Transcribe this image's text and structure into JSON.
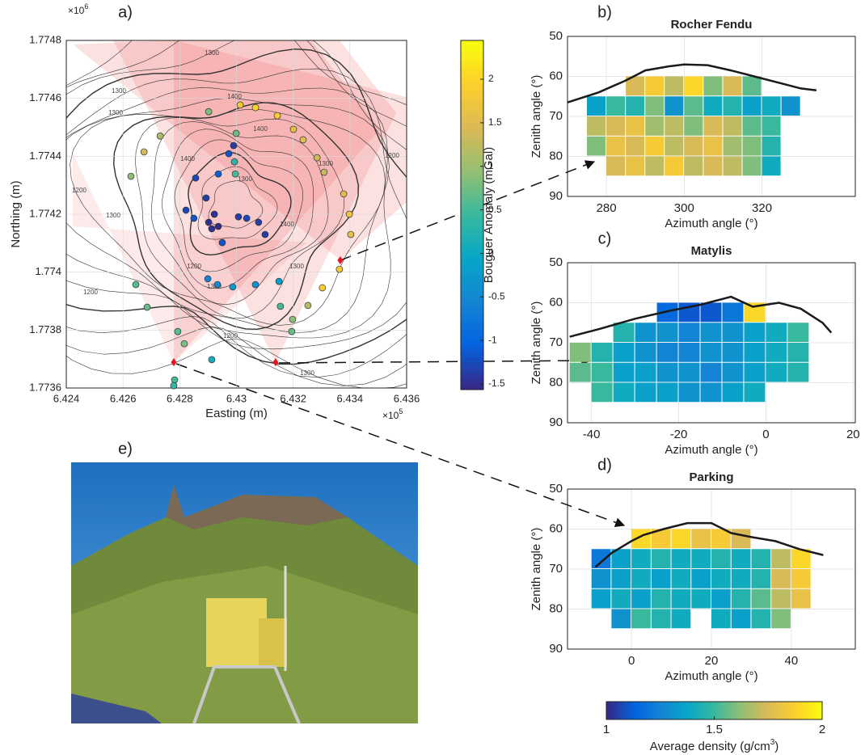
{
  "chart_data": [
    {
      "type": "scatter",
      "label": "a)",
      "xlabel": "Easting (m)",
      "ylabel": "Northing (m)",
      "x_exponent": {
        "base": "×10",
        "exp": "5"
      },
      "y_exponent": {
        "base": "×10",
        "exp": "6"
      },
      "xlim": [
        6.424,
        6.436
      ],
      "ylim": [
        1.7736,
        1.7748
      ],
      "xticks": [
        6.424,
        6.426,
        6.428,
        6.43,
        6.432,
        6.434,
        6.436
      ],
      "yticks": [
        1.7736,
        1.7738,
        1.774,
        1.7742,
        1.7744,
        1.7746,
        1.7748
      ],
      "grid": true,
      "contour_labels": [
        "1300",
        "1300",
        "1300",
        "1400",
        "1200",
        "1400",
        "1300",
        "1200",
        "1300",
        "1400",
        "1400",
        "1300",
        "1300",
        "1200",
        "1300",
        "1200",
        "1200",
        "1300"
      ],
      "stations": {
        "x": [
          6.43013,
          6.43067,
          6.43144,
          6.43201,
          6.43235,
          6.43284,
          6.43309,
          6.43378,
          6.43398,
          6.43403,
          6.43363,
          6.43303,
          6.43252,
          6.43198,
          6.43195,
          6.43155,
          6.4315,
          6.43067,
          6.42987,
          6.42933,
          6.42899,
          6.42793,
          6.42816,
          6.42913,
          6.42782,
          6.42779,
          6.42645,
          6.42685,
          6.42628,
          6.42674,
          6.42731,
          6.42902,
          6.42999,
          6.4299,
          6.42993,
          6.42996,
          6.42973,
          6.42936,
          6.42856,
          6.42893,
          6.42822,
          6.42922,
          6.42913,
          6.42936,
          6.43007,
          6.43036,
          6.43078,
          6.43101,
          6.4285,
          6.4295,
          6.42902
        ],
        "y": [
          1.774577,
          1.774568,
          1.77454,
          1.774493,
          1.774457,
          1.774395,
          1.774345,
          1.77427,
          1.7742,
          1.77413,
          1.77401,
          1.773946,
          1.773885,
          1.773837,
          1.773795,
          1.773882,
          1.773968,
          1.773957,
          1.773949,
          1.773957,
          1.773977,
          1.773795,
          1.773753,
          1.773698,
          1.773628,
          1.773608,
          1.773957,
          1.773879,
          1.774331,
          1.774415,
          1.77447,
          1.774554,
          1.774479,
          1.774437,
          1.774381,
          1.774339,
          1.774409,
          1.774339,
          1.774325,
          1.774256,
          1.774214,
          1.7742,
          1.77415,
          1.774158,
          1.774191,
          1.774186,
          1.774172,
          1.77413,
          1.774186,
          1.774102,
          1.774172
        ],
        "values": [
          1.8,
          2.0,
          1.9,
          1.6,
          1.5,
          1.4,
          1.3,
          1.5,
          1.7,
          1.6,
          1.8,
          1.9,
          1.2,
          0.9,
          0.7,
          0.5,
          -0.2,
          -0.4,
          -0.3,
          -0.5,
          -0.6,
          0.6,
          0.8,
          0.1,
          0.5,
          0.4,
          0.6,
          0.7,
          0.9,
          1.4,
          1.1,
          0.8,
          0.7,
          -1.4,
          0.3,
          0.5,
          -1.2,
          -1.1,
          -1.3,
          -1.4,
          -1.3,
          -1.5,
          -1.5,
          -1.6,
          -1.4,
          -1.3,
          -1.4,
          -1.4,
          -1.2,
          -1.2,
          -1.5
        ]
      },
      "telescopes": {
        "x": [
          6.43366,
          6.43138,
          6.42779
        ],
        "y": [
          1.774041,
          1.773689,
          1.773689
        ],
        "color": "#e8141b"
      },
      "colorbar": {
        "label": "Bouguer Anomaly (mGal)",
        "clim": [
          -1.565,
          2.446
        ],
        "ticks": [
          -1.5,
          -1,
          -0.5,
          0,
          0.5,
          1,
          1.5,
          2
        ],
        "colormap": "parula"
      }
    },
    {
      "type": "heatmap",
      "label": "b)",
      "title": "Rocher Fendu",
      "xlabel": "Azimuth angle (°)",
      "ylabel": "Zenith angle (°)",
      "xlim": [
        270,
        344
      ],
      "ylim": [
        50,
        90
      ],
      "xticks": [
        280,
        300,
        320
      ],
      "yticks": [
        50,
        60,
        70,
        80,
        90
      ],
      "grid": true,
      "x": [
        277.5,
        282.5,
        287.5,
        292.5,
        297.5,
        302.5,
        307.5,
        312.5,
        317.5,
        322.5,
        327.5
      ],
      "y": [
        62.5,
        67.5,
        72.5,
        77.5,
        82.5
      ],
      "values": [
        [
          null,
          null,
          1.75,
          1.85,
          1.7,
          1.9,
          1.6,
          1.75,
          1.55,
          null,
          null
        ],
        [
          1.35,
          1.5,
          1.45,
          1.6,
          1.3,
          1.55,
          1.4,
          1.45,
          1.35,
          1.4,
          1.3
        ],
        [
          1.7,
          1.75,
          1.8,
          1.65,
          1.7,
          1.6,
          1.75,
          1.7,
          1.55,
          1.5,
          null
        ],
        [
          1.6,
          1.8,
          1.75,
          1.85,
          1.7,
          1.75,
          1.8,
          1.65,
          1.6,
          1.45,
          null
        ],
        [
          null,
          1.75,
          1.8,
          1.7,
          1.85,
          1.7,
          1.75,
          1.7,
          1.6,
          1.4,
          null
        ]
      ],
      "profile": {
        "x": [
          270,
          278,
          285,
          290,
          296,
          300,
          306,
          312,
          318,
          324,
          330,
          334
        ],
        "y": [
          66.5,
          64,
          61,
          58.5,
          57.5,
          57,
          57.2,
          58.5,
          60,
          61.5,
          63,
          63.5
        ],
        "color": "#1a1a1a"
      }
    },
    {
      "type": "heatmap",
      "label": "c)",
      "title": "Matylis",
      "xlabel": "Azimuth angle (°)",
      "ylabel": "Zenith angle (°)",
      "xlim": [
        -45.5,
        20.5
      ],
      "ylim": [
        50,
        90
      ],
      "xticks": [
        -40,
        -20,
        0,
        20
      ],
      "yticks": [
        50,
        60,
        70,
        80,
        90
      ],
      "grid": true,
      "x": [
        -42.5,
        -37.5,
        -32.5,
        -27.5,
        -22.5,
        -17.5,
        -12.5,
        -7.5,
        -2.5,
        2.5,
        7.5,
        12.5
      ],
      "y": [
        62.5,
        67.5,
        72.5,
        77.5,
        82.5
      ],
      "values": [
        [
          null,
          null,
          null,
          null,
          1.15,
          1.1,
          1.1,
          1.2,
          1.9,
          null,
          null,
          null
        ],
        [
          null,
          null,
          1.45,
          1.3,
          1.3,
          1.25,
          1.3,
          1.3,
          1.35,
          1.4,
          1.5,
          null
        ],
        [
          1.6,
          1.45,
          1.35,
          1.3,
          1.25,
          1.25,
          1.3,
          1.3,
          1.35,
          1.4,
          1.45,
          null
        ],
        [
          1.55,
          1.5,
          1.35,
          1.35,
          1.3,
          1.3,
          1.25,
          1.3,
          1.35,
          1.4,
          1.45,
          null
        ],
        [
          null,
          1.5,
          1.4,
          1.35,
          1.35,
          1.3,
          1.3,
          1.35,
          1.4,
          null,
          null,
          null
        ]
      ],
      "profile": {
        "x": [
          -45,
          -38,
          -30,
          -22,
          -15,
          -8,
          -3,
          3,
          8,
          13,
          15
        ],
        "y": [
          68.5,
          66.5,
          64,
          62,
          60.5,
          58.5,
          61,
          60,
          61.5,
          65,
          67.5
        ],
        "color": "#1a1a1a"
      }
    },
    {
      "type": "heatmap",
      "label": "d)",
      "title": "Parking",
      "xlabel": "Azimuth angle (°)",
      "ylabel": "Zenith angle (°)",
      "xlim": [
        -16,
        56
      ],
      "ylim": [
        50,
        90
      ],
      "xticks": [
        0,
        20,
        40
      ],
      "yticks": [
        50,
        60,
        70,
        80,
        90
      ],
      "grid": true,
      "x": [
        -7.5,
        -2.5,
        2.5,
        7.5,
        12.5,
        17.5,
        22.5,
        27.5,
        32.5,
        37.5,
        42.5,
        47.5
      ],
      "y": [
        62.5,
        67.5,
        72.5,
        77.5,
        82.5
      ],
      "values": [
        [
          null,
          null,
          1.9,
          1.85,
          1.9,
          1.8,
          1.85,
          1.75,
          null,
          null,
          null,
          null
        ],
        [
          1.2,
          1.35,
          1.4,
          1.45,
          1.4,
          1.4,
          1.45,
          1.4,
          1.45,
          1.7,
          1.9,
          null
        ],
        [
          1.3,
          1.35,
          1.4,
          1.35,
          1.4,
          1.35,
          1.4,
          1.4,
          1.45,
          1.75,
          1.85,
          null
        ],
        [
          1.35,
          1.4,
          1.35,
          1.45,
          1.4,
          1.4,
          1.35,
          1.45,
          1.55,
          1.7,
          1.8,
          null
        ],
        [
          null,
          1.3,
          1.5,
          1.45,
          1.4,
          null,
          1.4,
          1.35,
          1.45,
          1.6,
          null,
          null
        ]
      ],
      "profile": {
        "x": [
          -9,
          -5,
          0,
          3,
          8,
          14,
          20,
          25,
          30,
          36,
          42,
          48
        ],
        "y": [
          69.5,
          66,
          63,
          61.5,
          60,
          58.5,
          58.5,
          61,
          62,
          63,
          65,
          66.5
        ],
        "color": "#1a1a1a"
      }
    }
  ],
  "photo": {
    "label": "e)"
  },
  "density_colorbar": {
    "label": "Average density (g/cm",
    "label_sup": "3",
    "label_end": ")",
    "clim": [
      1,
      2
    ],
    "ticks": [
      1,
      1.5,
      2
    ],
    "colormap": "parula"
  }
}
